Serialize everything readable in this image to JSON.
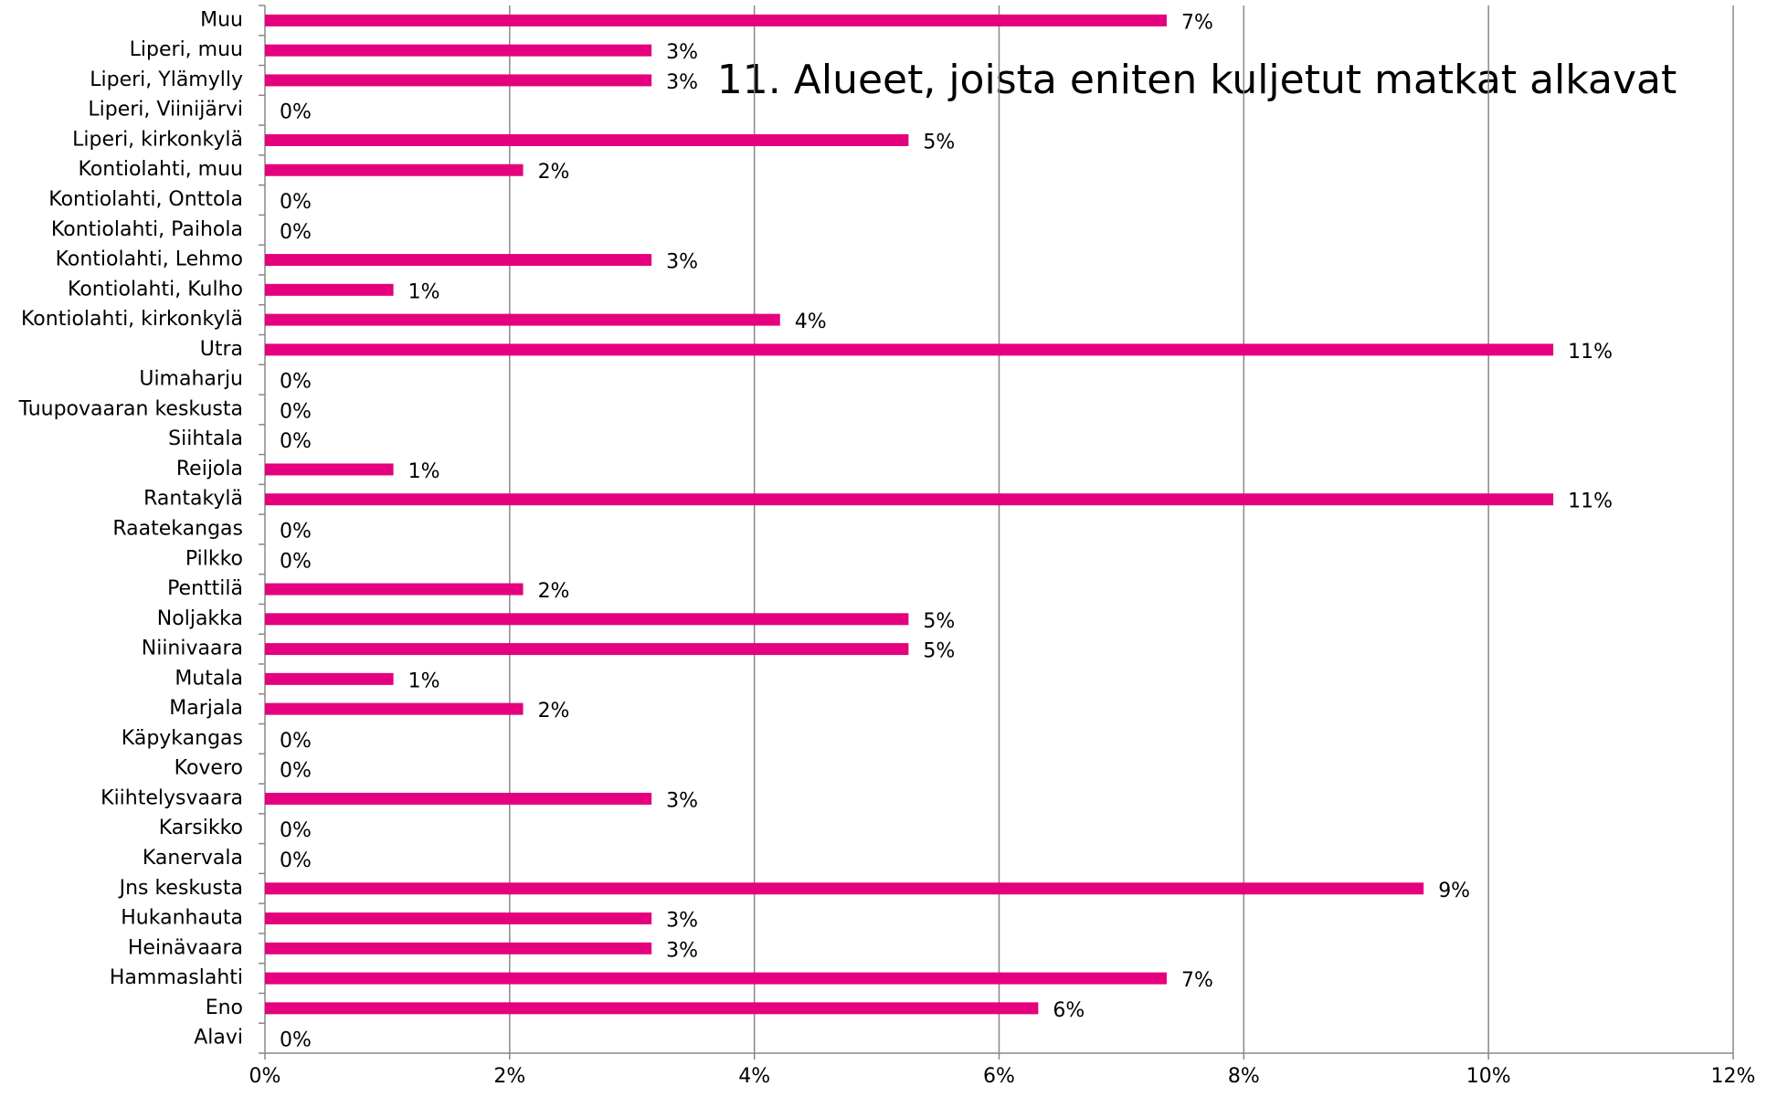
{
  "chart_data": {
    "type": "barh",
    "title": "11. Alueet, joista eniten kuljetut matkat alkavat",
    "categories": [
      "Muu",
      "Liperi, muu",
      "Liperi, Ylämylly",
      "Liperi, Viinijärvi",
      "Liperi, kirkonkylä",
      "Kontiolahti, muu",
      "Kontiolahti, Onttola",
      "Kontiolahti, Paihola",
      "Kontiolahti, Lehmo",
      "Kontiolahti, Kulho",
      "Kontiolahti, kirkonkylä",
      "Utra",
      "Uimaharju",
      "Tuupovaaran keskusta",
      "Siihtala",
      "Reijola",
      "Rantakylä",
      "Raatekangas",
      "Pilkko",
      "Penttilä",
      "Noljakka",
      "Niinivaara",
      "Mutala",
      "Marjala",
      "Käpykangas",
      "Kovero",
      "Kiihtelysvaara",
      "Karsikko",
      "Kanervala",
      "Jns keskusta",
      "Hukanhauta",
      "Heinävaara",
      "Hammaslahti",
      "Eno",
      "Alavi"
    ],
    "values": [
      7.37,
      3.16,
      3.16,
      0,
      5.26,
      2.11,
      0,
      0,
      3.16,
      1.05,
      4.21,
      10.53,
      0,
      0,
      0,
      1.05,
      10.53,
      0,
      0,
      2.11,
      5.26,
      5.26,
      1.05,
      2.11,
      0,
      0,
      3.16,
      0,
      0,
      9.47,
      3.16,
      3.16,
      7.37,
      6.32,
      0
    ],
    "value_labels": [
      "7%",
      "3%",
      "3%",
      "0%",
      "5%",
      "2%",
      "0%",
      "0%",
      "3%",
      "1%",
      "4%",
      "11%",
      "0%",
      "0%",
      "0%",
      "1%",
      "11%",
      "0%",
      "0%",
      "2%",
      "5%",
      "5%",
      "1%",
      "2%",
      "0%",
      "0%",
      "3%",
      "0%",
      "0%",
      "9%",
      "3%",
      "3%",
      "7%",
      "6%",
      "0%"
    ],
    "color": "#e5007e",
    "xlim": [
      0,
      12
    ],
    "xticks": [
      {
        "value": 0,
        "label": "0%"
      },
      {
        "value": 2,
        "label": "2%"
      },
      {
        "value": 4,
        "label": "4%"
      },
      {
        "value": 6,
        "label": "6%"
      },
      {
        "value": 8,
        "label": "8%"
      },
      {
        "value": 10,
        "label": "10%"
      },
      {
        "value": 12,
        "label": "12%"
      }
    ],
    "grid": true
  }
}
